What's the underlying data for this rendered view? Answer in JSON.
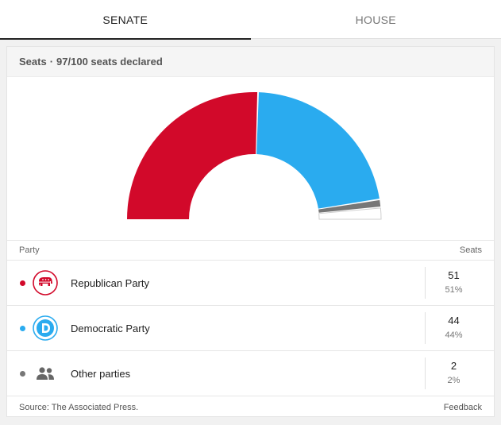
{
  "tabs": [
    {
      "label": "SENATE",
      "active": true
    },
    {
      "label": "HOUSE",
      "active": false
    }
  ],
  "card": {
    "title": "Seats",
    "separator": "·",
    "declared": "97/100 seats declared"
  },
  "chart_data": {
    "type": "pie",
    "layout": "semicircle",
    "total": 100,
    "series": [
      {
        "name": "Republican Party",
        "value": 51,
        "color": "#d2092a"
      },
      {
        "name": "Democratic Party",
        "value": 44,
        "color": "#2aabef"
      },
      {
        "name": "Other parties",
        "value": 2,
        "color": "#777777"
      },
      {
        "name": "Undeclared",
        "value": 3,
        "color": "#ffffff"
      }
    ]
  },
  "table": {
    "col_party": "Party",
    "col_seats": "Seats",
    "rows": [
      {
        "name": "Republican Party",
        "seats": "51",
        "pct": "51%",
        "color": "#d2092a",
        "icon": "elephant-icon"
      },
      {
        "name": "Democratic Party",
        "seats": "44",
        "pct": "44%",
        "color": "#2aabef",
        "icon": "donkey-d-icon"
      },
      {
        "name": "Other parties",
        "seats": "2",
        "pct": "2%",
        "color": "#777777",
        "icon": "people-icon"
      }
    ]
  },
  "footer": {
    "source": "Source: The Associated Press.",
    "feedback": "Feedback"
  }
}
